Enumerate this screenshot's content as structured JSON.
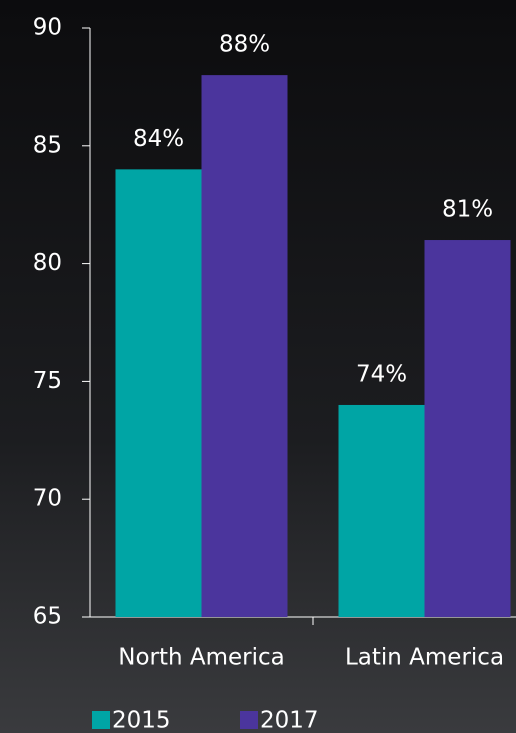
{
  "chart_data": {
    "type": "bar",
    "categories": [
      "North America",
      "Latin America"
    ],
    "series": [
      {
        "name": "2015",
        "color": "#00a5a5",
        "values": [
          84,
          74
        ],
        "value_labels": [
          "84%",
          "74%"
        ]
      },
      {
        "name": "2017",
        "color": "#4b359d",
        "values": [
          88,
          81
        ],
        "value_labels": [
          "88%",
          "81%"
        ]
      }
    ],
    "ylim": [
      65,
      90
    ],
    "yticks": [
      65,
      70,
      75,
      80,
      85,
      90
    ],
    "grid": false,
    "legend": "bottom-left"
  }
}
